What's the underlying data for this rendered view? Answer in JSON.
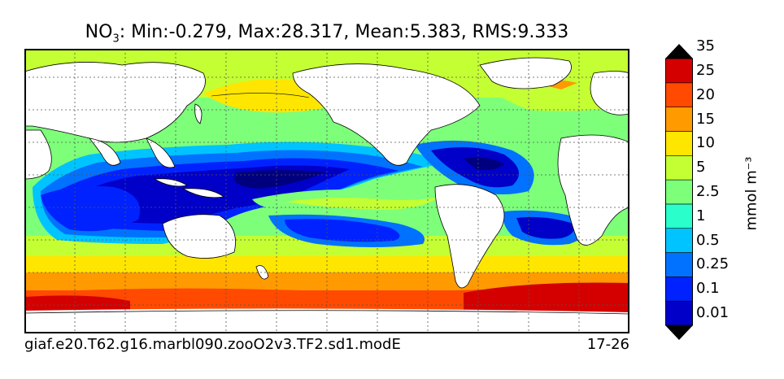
{
  "title": {
    "var": "NO",
    "sub": "3",
    "stats": ": Min:-0.279, Max:28.317, Mean:5.383, RMS:9.333"
  },
  "footer": {
    "case": "giaf.e20.T62.g16.marbl090.zooO2v3.TF2.sd1.modE",
    "years": "17-26"
  },
  "colorbar": {
    "units": "mmol m⁻³",
    "levels": [
      "0.01",
      "0.1",
      "0.25",
      "0.5",
      "1",
      "2.5",
      "5",
      "10",
      "15",
      "20",
      "25",
      "35"
    ],
    "colors": [
      "#00007f",
      "#0000c8",
      "#0022ff",
      "#0072ff",
      "#00c4ff",
      "#2affcc",
      "#7dff7a",
      "#c4ff33",
      "#ffe600",
      "#ff9a00",
      "#ff4a00",
      "#d40000",
      "#7f0000"
    ]
  }
}
